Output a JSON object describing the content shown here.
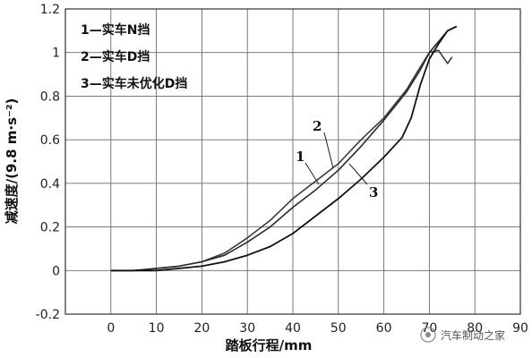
{
  "chart_data": {
    "type": "line",
    "xlabel": "踏板行程/mm",
    "ylabel": "减速度/(9.8 m·s⁻²)",
    "xlim": [
      -10,
      90
    ],
    "ylim": [
      -0.2,
      1.2
    ],
    "xticks": [
      "0",
      "10",
      "20",
      "30",
      "40",
      "50",
      "60",
      "70",
      "80",
      "90"
    ],
    "yticks": [
      "-0.2",
      "0",
      "0.2",
      "0.4",
      "0.6",
      "0.8",
      "1",
      "1.2"
    ],
    "grid": true,
    "legend_position": "top-left",
    "legend": [
      "1—实车N挡",
      "2—实车D挡",
      "3—实车未优化D挡"
    ],
    "annotations": [
      "1",
      "2",
      "3"
    ],
    "series": [
      {
        "name": "1—实车N挡",
        "color": "#3a3a3a",
        "x": [
          0,
          5,
          10,
          15,
          20,
          25,
          30,
          35,
          40,
          45,
          50,
          55,
          60,
          65,
          67,
          70,
          72,
          74,
          75
        ],
        "y": [
          0,
          0,
          0.01,
          0.02,
          0.04,
          0.08,
          0.15,
          0.23,
          0.33,
          0.41,
          0.49,
          0.6,
          0.7,
          0.83,
          0.9,
          1.0,
          1.01,
          0.95,
          0.98
        ]
      },
      {
        "name": "2—实车D挡",
        "color": "#2a2a2a",
        "x": [
          0,
          5,
          10,
          15,
          20,
          25,
          30,
          35,
          40,
          45,
          50,
          55,
          60,
          65,
          68,
          70,
          72,
          74,
          76
        ],
        "y": [
          0,
          0,
          0.01,
          0.02,
          0.04,
          0.07,
          0.13,
          0.2,
          0.29,
          0.37,
          0.46,
          0.57,
          0.69,
          0.82,
          0.92,
          1.0,
          1.05,
          1.1,
          1.12
        ]
      },
      {
        "name": "3—实车未优化D挡",
        "color": "#111111",
        "x": [
          0,
          5,
          10,
          15,
          20,
          25,
          30,
          35,
          40,
          45,
          50,
          55,
          60,
          64,
          66,
          68,
          70,
          72,
          74,
          76
        ],
        "y": [
          0,
          0,
          0,
          0.01,
          0.02,
          0.04,
          0.07,
          0.11,
          0.17,
          0.25,
          0.33,
          0.42,
          0.52,
          0.61,
          0.7,
          0.85,
          0.97,
          1.04,
          1.1,
          1.12
        ]
      }
    ]
  },
  "watermark": "汽车制动之家",
  "colors": {
    "grid": "#6a6a6a",
    "frame": "#333333",
    "background": "#ffffff"
  }
}
